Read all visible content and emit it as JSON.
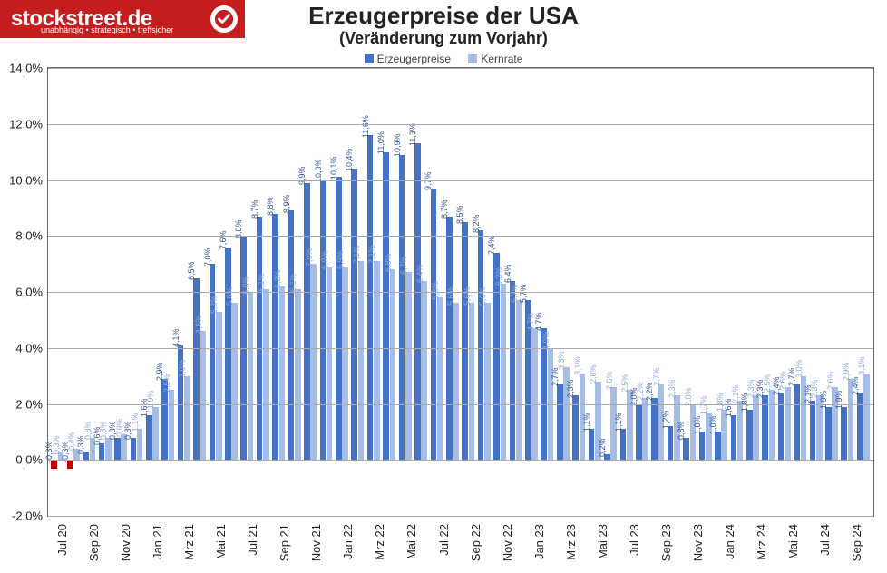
{
  "logo": {
    "text": "stockstreet.de",
    "tagline": "unabhängig • strategisch • treffsicher"
  },
  "title": "Erzeugerpreise der USA",
  "subtitle": "(Veränderung zum Vorjahr)",
  "legend": {
    "a": "Erzeugerpreise",
    "b": "Kernrate"
  },
  "chart": {
    "ylim": [
      -2.0,
      14.0
    ],
    "yticks": [
      -2.0,
      0.0,
      2.0,
      4.0,
      6.0,
      8.0,
      10.0,
      12.0,
      14.0
    ],
    "ylabels": [
      "-2,0%",
      "0,0%",
      "2,0%",
      "4,0%",
      "6,0%",
      "8,0%",
      "10,0%",
      "12,0%",
      "14,0%"
    ],
    "series_a_color": "#4472c4",
    "series_b_color": "#a6bde6",
    "neg_color": "#c00000",
    "label_a_color": "#305496",
    "label_b_color": "#8ea9db",
    "bg": "#ffffff",
    "grid_color": "#aaaaaa"
  },
  "data": [
    {
      "x": "Jul 20",
      "a": -0.3,
      "b": 0.3,
      "al": "-0,3%",
      "bl": "0,3%"
    },
    {
      "x": "",
      "a": -0.3,
      "b": 0.4,
      "al": "-0,3%",
      "bl": "0,4%"
    },
    {
      "x": "Sep 20",
      "a": 0.3,
      "b": 0.8,
      "al": "0,3%",
      "bl": "0,8%"
    },
    {
      "x": "",
      "a": 0.6,
      "b": 0.8,
      "al": "0,6%",
      "bl": "0,8%"
    },
    {
      "x": "Nov 20",
      "a": 0.8,
      "b": 0.9,
      "al": "0,8%",
      "bl": "0,9%"
    },
    {
      "x": "",
      "a": 0.8,
      "b": 1.1,
      "al": "0,8%",
      "bl": "1,1%"
    },
    {
      "x": "Jan 21",
      "a": 1.6,
      "b": 1.9,
      "al": "1,6%",
      "bl": "1,9%"
    },
    {
      "x": "",
      "a": 2.9,
      "b": 2.5,
      "al": "2,9%",
      "bl": "2,5%"
    },
    {
      "x": "Mrz 21",
      "a": 4.1,
      "b": 3.0,
      "al": "4,1%",
      "bl": "3,0%"
    },
    {
      "x": "",
      "a": 6.5,
      "b": 4.6,
      "al": "6,5%",
      "bl": "4,6%"
    },
    {
      "x": "Mai 21",
      "a": 7.0,
      "b": 5.3,
      "al": "7,0%",
      "bl": "5,3%"
    },
    {
      "x": "",
      "a": 7.6,
      "b": 5.6,
      "al": "7,6%",
      "bl": "5,6%"
    },
    {
      "x": "Jul 21",
      "a": 8.0,
      "b": 6.0,
      "al": "8,0%",
      "bl": "6,0%"
    },
    {
      "x": "",
      "a": 8.7,
      "b": 6.1,
      "al": "8,7%",
      "bl": "6,1%"
    },
    {
      "x": "Sep 21",
      "a": 8.8,
      "b": 6.2,
      "al": "8,8%",
      "bl": "6,2%"
    },
    {
      "x": "",
      "a": 8.9,
      "b": 6.1,
      "al": "8,9%",
      "bl": "6,1%"
    },
    {
      "x": "Nov 21",
      "a": 9.9,
      "b": 7.0,
      "al": "9,9%",
      "bl": "7,0%"
    },
    {
      "x": "",
      "a": 10.0,
      "b": 6.9,
      "al": "10,0%",
      "bl": "6,9%"
    },
    {
      "x": "Jan 22",
      "a": 10.1,
      "b": 6.9,
      "al": "10,1%",
      "bl": "6,9%"
    },
    {
      "x": "",
      "a": 10.4,
      "b": 7.1,
      "al": "10,4%",
      "bl": "7,1%"
    },
    {
      "x": "Mrz 22",
      "a": 11.6,
      "b": 7.1,
      "al": "11,6%",
      "bl": "7,1%"
    },
    {
      "x": "",
      "a": 11.0,
      "b": 6.8,
      "al": "11,0%",
      "bl": "6,8%"
    },
    {
      "x": "Mai 22",
      "a": 10.9,
      "b": 6.7,
      "al": "10,9%",
      "bl": "6,7%"
    },
    {
      "x": "",
      "a": 11.3,
      "b": 6.4,
      "al": "11,3%",
      "bl": "6,4%"
    },
    {
      "x": "Jul 22",
      "a": 9.7,
      "b": 5.8,
      "al": "9,7%",
      "bl": "5,8%"
    },
    {
      "x": "",
      "a": 8.7,
      "b": 5.6,
      "al": "8,7%",
      "bl": "5,6%"
    },
    {
      "x": "Sep 22",
      "a": 8.5,
      "b": 5.6,
      "al": "8,5%",
      "bl": "5,6%"
    },
    {
      "x": "",
      "a": 8.2,
      "b": 5.6,
      "al": "8,2%",
      "bl": "5,6%"
    },
    {
      "x": "Nov 22",
      "a": 7.4,
      "b": 6.3,
      "al": "7,4%",
      "bl": "6,3%"
    },
    {
      "x": "",
      "a": 6.4,
      "b": 5.7,
      "al": "6,4%",
      "bl": "5,7%"
    },
    {
      "x": "Jan 23",
      "a": 5.7,
      "b": 4.7,
      "al": "5,7%",
      "bl": "4,7%"
    },
    {
      "x": "",
      "a": 4.7,
      "b": 4.0,
      "al": "4,7%",
      "bl": "4,0%"
    },
    {
      "x": "Mrz 23",
      "a": 2.7,
      "b": 3.3,
      "al": "2,7%",
      "bl": "3,3%"
    },
    {
      "x": "",
      "a": 2.3,
      "b": 3.1,
      "al": "2,3%",
      "bl": "3,1%"
    },
    {
      "x": "Mai 23",
      "a": 1.1,
      "b": 2.8,
      "al": "1,1%",
      "bl": "2,8%"
    },
    {
      "x": "",
      "a": 0.2,
      "b": 2.6,
      "al": "0,2%",
      "bl": "2,6%"
    },
    {
      "x": "Jul 23",
      "a": 1.1,
      "b": 2.5,
      "al": "1,1%",
      "bl": "2,5%"
    },
    {
      "x": "",
      "a": 2.0,
      "b": 2.2,
      "al": "2,0%",
      "bl": "2,2%"
    },
    {
      "x": "Sep 23",
      "a": 2.2,
      "b": 2.7,
      "al": "2,2%",
      "bl": "2,7%"
    },
    {
      "x": "",
      "a": 1.2,
      "b": 2.3,
      "al": "1,2%",
      "bl": "2,3%"
    },
    {
      "x": "Nov 23",
      "a": 0.8,
      "b": 2.0,
      "al": "0,8%",
      "bl": "2,0%"
    },
    {
      "x": "",
      "a": 1.0,
      "b": 1.7,
      "al": "1,0%",
      "bl": "1,7%"
    },
    {
      "x": "Jan 24",
      "a": 1.0,
      "b": 1.8,
      "al": "1,0%",
      "bl": "1,8%"
    },
    {
      "x": "",
      "a": 1.6,
      "b": 2.1,
      "al": "1,6%",
      "bl": "2,1%"
    },
    {
      "x": "Mrz 24",
      "a": 1.8,
      "b": 2.3,
      "al": "1,8%",
      "bl": "2,3%"
    },
    {
      "x": "",
      "a": 2.3,
      "b": 2.5,
      "al": "2,3%",
      "bl": "2,5%"
    },
    {
      "x": "Mai 24",
      "a": 2.4,
      "b": 2.6,
      "al": "2,4%",
      "bl": "2,6%"
    },
    {
      "x": "",
      "a": 2.7,
      "b": 3.0,
      "al": "2,7%",
      "bl": "3,0%"
    },
    {
      "x": "Jul 24",
      "a": 2.1,
      "b": 2.3,
      "al": "2,1%",
      "bl": "2,3%"
    },
    {
      "x": "",
      "a": 1.9,
      "b": 2.6,
      "al": "1,9%",
      "bl": "2,6%"
    },
    {
      "x": "Sep 24",
      "a": 1.9,
      "b": 2.9,
      "al": "1,9%",
      "bl": "2,9%"
    },
    {
      "x": "",
      "a": 2.4,
      "b": 3.1,
      "al": "2,4%",
      "bl": "3,1%"
    }
  ]
}
